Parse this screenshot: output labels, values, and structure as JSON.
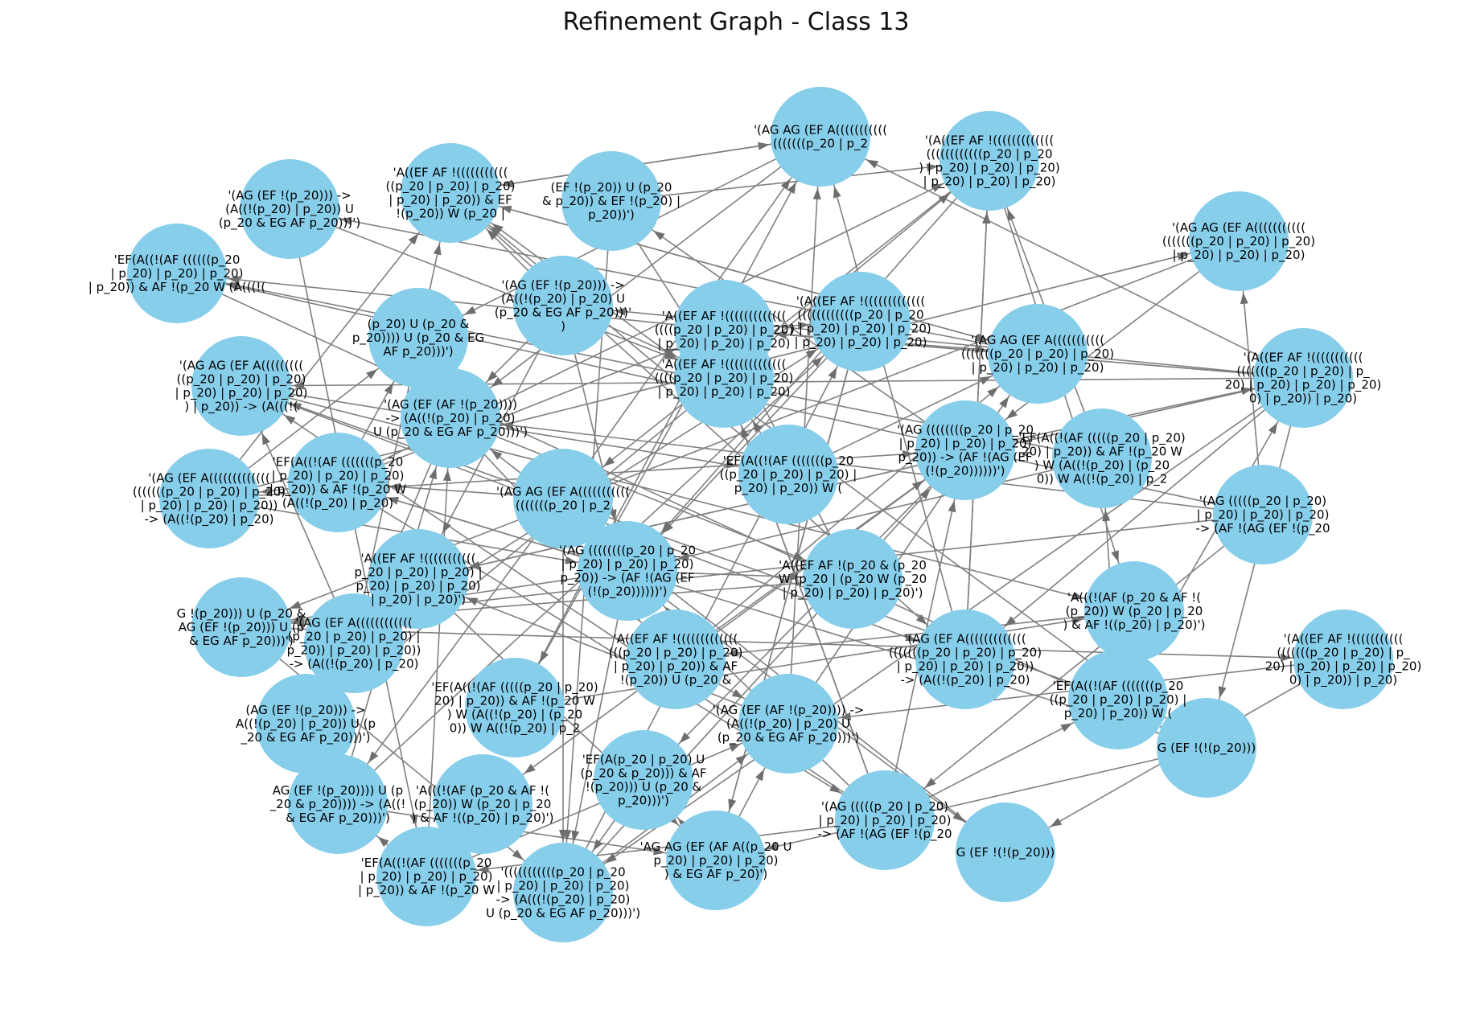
{
  "title": "Refinement Graph - Class 13",
  "colors": {
    "node": "#87ceeb",
    "edge": "#808080",
    "label": "#000000",
    "background": "#ffffff"
  },
  "labels": [
    "'A((EF AF !(((((((((((((\n((((p_20 | p_20) | p_20)\n| p_20) | p_20) | p_20)",
    "'(AG AG (EF A(((((((((((\n(((((((p_20 | p_2",
    "'(A((EF AF !(((((((((((((\n((((((((((((p_20 | p_20\n) | p_20) | p_20) | p_20)\n| p_20) | p_20) | p_20)",
    "'(AG AG (EF A(((((((((((\n(((((((p_20 | p_20) | p_20)\n| p_20) | p_20) | p_20)",
    "'(A((EF AF !(((((((((((\n(((((((p_20 | p_20) | p_\n20) | p_20) | p_20) | p_20)\n0) | p_20)) | p_20)",
    "'EF(A((!(AF (((((p_20 | p_20)\n20) | p_20)) & AF !(p_20 W\n) W (A((!(p_20) | (p_20\n0)) W A((!(p_20) | p_2",
    "'(AG ((((((((p_20 | p_20\n| p_20) | p_20) | p_20)\np_20)) -> (AF !(AG (EF\n(!(p_20))))))')",
    "'A(((!(AF (p_20 & AF !(\n(p_20)) W (p_20 | p_20\n) & AF !((p_20) | p_20)')",
    "'(AG (((((p_20 | p_20)\n| p_20) | p_20) | p_20)\n-> (AF !(AG (EF !(p_20",
    "G (EF !(!(p_20)))",
    "'EF(A((!(AF (((((((p_20\n((p_20 | p_20) | p_20) |\np_20) | p_20)) W (",
    "'(AG (EF A(((((((((((((\n(((((((p_20 | p_20) | p_20)\n| p_20) | p_20) | p_20))\n-> (A((!(p_20) | p_20)",
    "'A((EF AF !(p_20 & (p_20\nW (p_20 | (p_20 W (p_20\n| p_20) | p_20) | p_20)')",
    "'(AG (EF (AF !(p_20)))) ->\n(A((!(p_20) | p_20) U\n(p_20 & EG AF p_20)))')",
    "'A((EF AF !(((((((((((((\n(((p_20 | p_20) | p_20)\n| p_20) | p_20)) & AF\n!(p_20)) U (p_20 &",
    "'EF(A(p_20 | p_20) U\n(p_20 & p_20))) & AF\n!(p_20))) U (p_20 &\np_20)))')",
    "'AG AG (EF (AF A((p_20 U\np_20) | p_20) | p_20)\n) & EG AF p_20)')",
    "'(((((((((((p_20 | p_20\n| p_20) | p_20) | p_20)\n-> (A(((!(p_20) | p_20)\nU (p_20 & EG AF p_20)))')",
    "'EF(A((!(AF (((((((p_20\n| p_20) | p_20) | p_20)\n| p_20)) & AF !(p_20 W",
    "AG (EF !(p_20)))) U (p\n_20 & p_20)))) -> (A((!\n& EG AF p_20)))')",
    "(AG (EF !(p_20))) ->\nA((!(p_20) | p_20)) U (p\n_20 & EG AF p_20)))')",
    "G !(p_20))) U (p_20 &\nAG (EF !(p_20))) U (p\n& EG AF p_20)))')",
    "'(AG (EF A((((((((((((\n(p_20 | p_20) | p_20) |\np_20)) | p_20) | p_20))\n-> (A((!(p_20) | p_20)",
    "'A((EF AF !(((((((((((\np_20 | p_20) | p_20) |\np_20) | p_20) | p_20)\n| p_20) | p_20)')",
    "'EF(A((!(AF (((((((p_20\n| p_20) | p_20) | p_20)\n| p_20)) & AF !(p_20 W\n(A((!(p_20) | p_20)",
    "'(AG (EF (AF !(p_20))))\n-> (A((!(p_20) | p_20)\nU (p_20 & EG AF p_20)))')",
    "(p_20) U (p_20 &\np_20)))) U (p_20 & EG\nAF p_20)))')",
    "'(AG AG (EF A(((((((((\n((p_20 | p_20) | p_20)\n| p_20) | p_20) | p_20)\n) | p_20)) -> (A(((!(",
    "'EF(A((!(AF ((((((p_20\n| p_20) | p_20) | p_20)\n| p_20)) & AF !(p_20 W (A(((!(",
    "'(AG (EF !(p_20))) ->\n(A((!(p_20) | p_20)) U\n(p_20 & EG AF p_20)))')",
    "'A((EF AF !(((((((((((\n((p_20 | p_20) | p_20)\n| p_20) | p_20)) & EF\n!(p_20)) W (p_20 |",
    "(EF !(p_20)) U (p_20\n& p_20)) & EF !(p_20) |\np_20))')",
    "'(AG (EF !(p_20))) ->\n(A((!(p_20) | p_20) U\n(p_20 & EG AF p_20)))'\n)"
  ]
}
